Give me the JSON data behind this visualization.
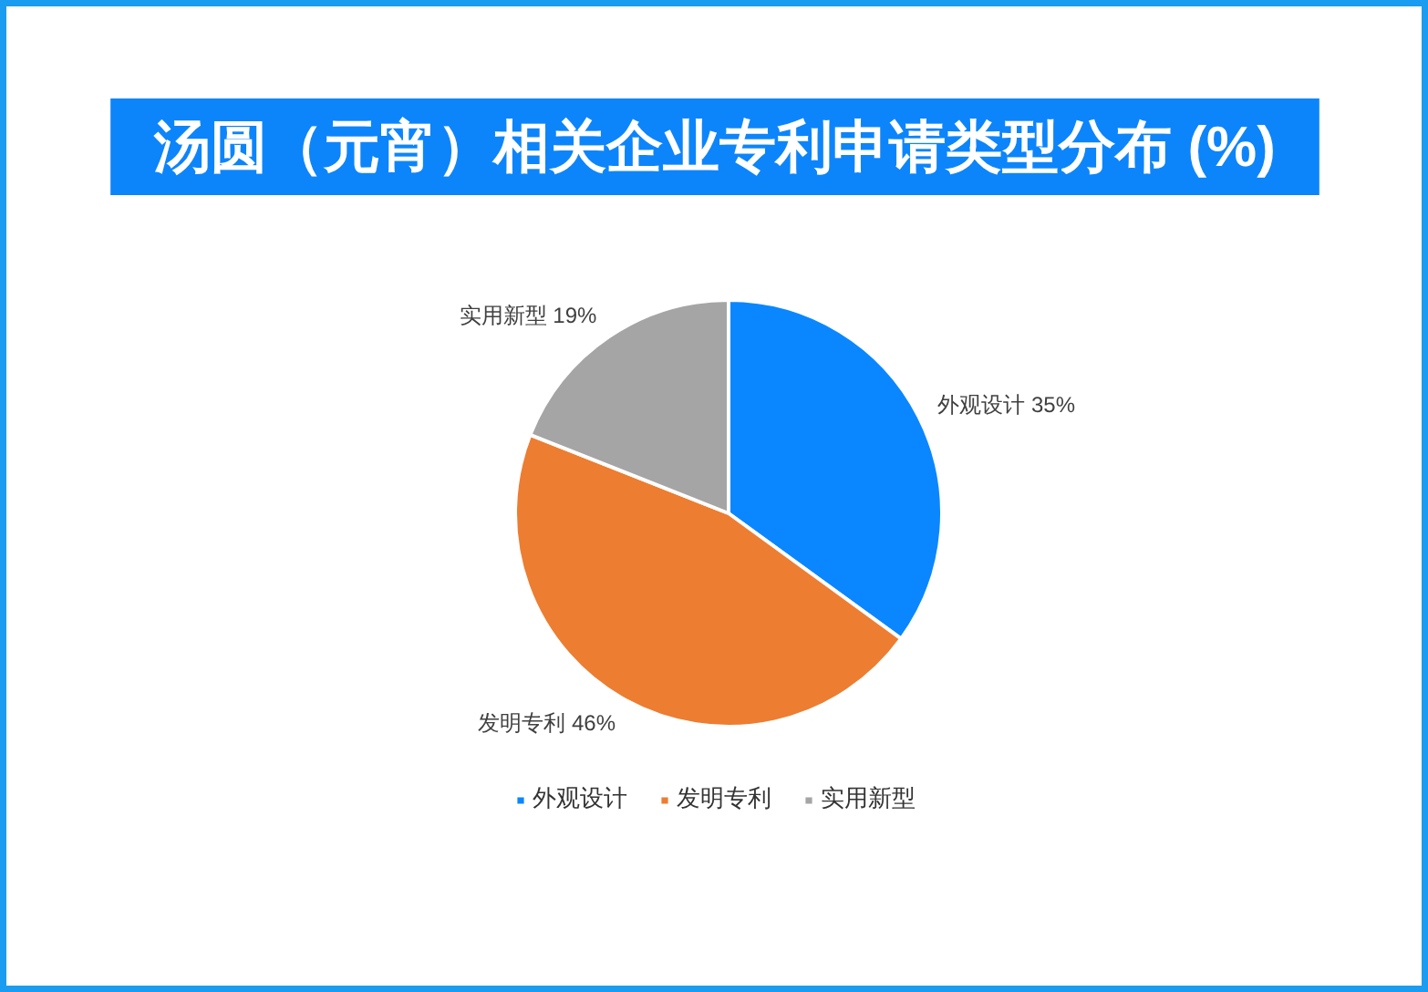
{
  "chart_data": {
    "type": "pie",
    "title": "汤圆（元宵）相关企业专利申请类型分布 (%)",
    "categories": [
      "外观设计",
      "发明专利",
      "实用新型"
    ],
    "values": [
      35,
      46,
      19
    ],
    "colors": [
      "#0a87fe",
      "#ed7d31",
      "#a5a5a5"
    ],
    "value_labels": [
      "35%",
      "46%",
      "19%"
    ],
    "legend": "bottom"
  }
}
